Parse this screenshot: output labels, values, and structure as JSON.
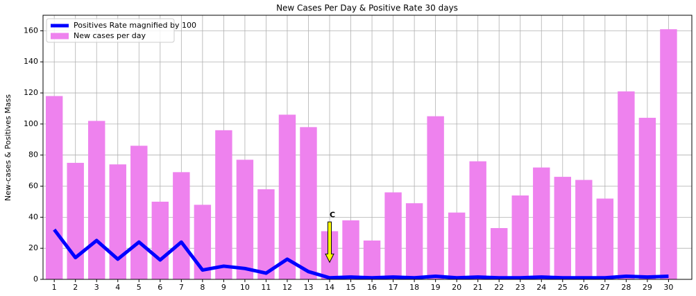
{
  "chart_data": {
    "type": "bar_line",
    "title": "New Cases Per Day & Positive Rate 30 days",
    "ylabel": "New-cases & Positives Mass",
    "x": [
      1,
      2,
      3,
      4,
      5,
      6,
      7,
      8,
      9,
      10,
      11,
      12,
      13,
      14,
      15,
      16,
      17,
      18,
      19,
      20,
      21,
      22,
      23,
      24,
      25,
      26,
      27,
      28,
      29,
      30
    ],
    "xlim": [
      0.47,
      31.1
    ],
    "xticks": [
      1,
      2,
      3,
      4,
      5,
      6,
      7,
      8,
      9,
      10,
      11,
      12,
      13,
      14,
      15,
      16,
      17,
      18,
      19,
      20,
      21,
      22,
      23,
      24,
      25,
      26,
      27,
      28,
      29,
      30
    ],
    "ylim": [
      0,
      170
    ],
    "yticks": [
      0,
      20,
      40,
      60,
      80,
      100,
      120,
      140,
      160
    ],
    "grid": true,
    "legend": "upper left",
    "series": [
      {
        "name": "Positives Rate magnified by 100",
        "kind": "line",
        "color": "#0000ff",
        "values": [
          32,
          14,
          25,
          13,
          24,
          12.5,
          24,
          6,
          8.5,
          7,
          4,
          13,
          5,
          1,
          1.5,
          1,
          1.5,
          1,
          2,
          1,
          1.5,
          1,
          1,
          1.5,
          1,
          1,
          1,
          2,
          1.5,
          2
        ]
      },
      {
        "name": "New cases per day",
        "kind": "bar",
        "color": "#ee82ee",
        "values": [
          118,
          75,
          102,
          74,
          86,
          50,
          69,
          48,
          96,
          77,
          58,
          106,
          98,
          31,
          38,
          25,
          56,
          49,
          105,
          43,
          76,
          33,
          54,
          72,
          66,
          64,
          52,
          121,
          104,
          161
        ]
      }
    ],
    "annotation": {
      "text": "C",
      "x": 14,
      "y": 40,
      "arrow_to": 11,
      "arrow_from": 37,
      "color": "#ffff00"
    }
  }
}
